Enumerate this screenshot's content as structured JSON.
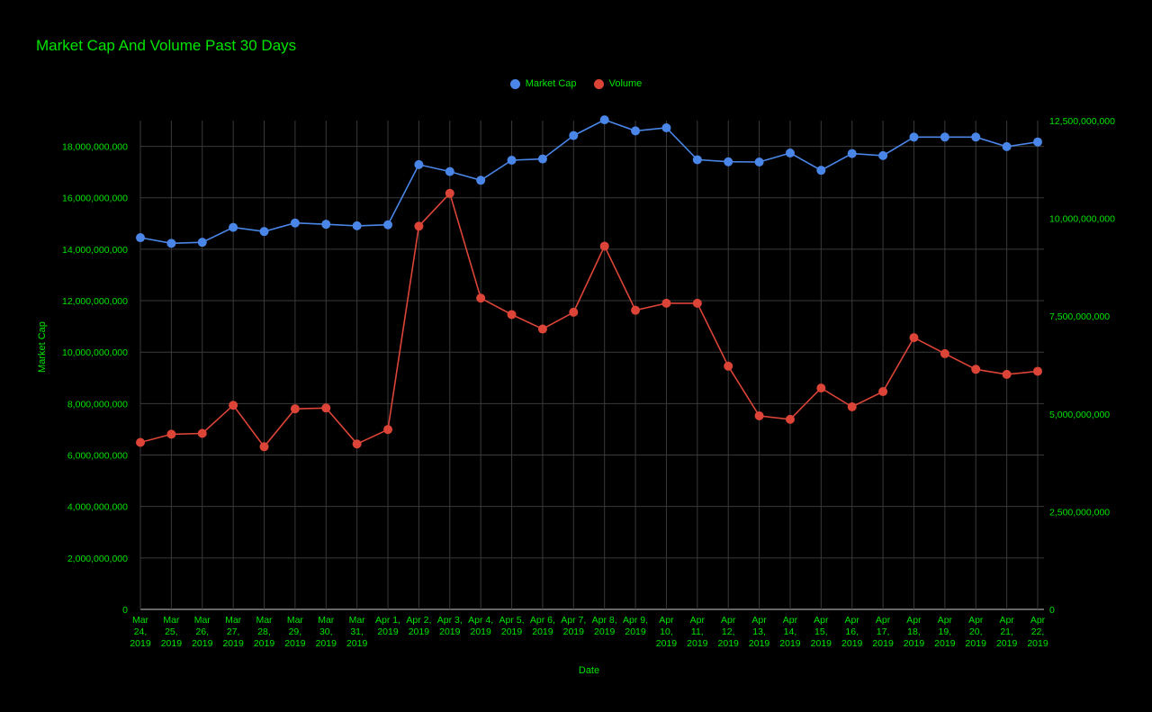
{
  "chart_data": {
    "type": "line",
    "title": "Market Cap And Volume Past 30 Days",
    "xlabel": "Date",
    "ylabel": "Market Cap",
    "ylabel_right": "",
    "categories": [
      [
        "Mar",
        "24,",
        "2019"
      ],
      [
        "Mar",
        "25,",
        "2019"
      ],
      [
        "Mar",
        "26,",
        "2019"
      ],
      [
        "Mar",
        "27,",
        "2019"
      ],
      [
        "Mar",
        "28,",
        "2019"
      ],
      [
        "Mar",
        "29,",
        "2019"
      ],
      [
        "Mar",
        "30,",
        "2019"
      ],
      [
        "Mar",
        "31,",
        "2019"
      ],
      [
        "Apr 1,",
        "2019"
      ],
      [
        "Apr 2,",
        "2019"
      ],
      [
        "Apr 3,",
        "2019"
      ],
      [
        "Apr 4,",
        "2019"
      ],
      [
        "Apr 5,",
        "2019"
      ],
      [
        "Apr 6,",
        "2019"
      ],
      [
        "Apr 7,",
        "2019"
      ],
      [
        "Apr 8,",
        "2019"
      ],
      [
        "Apr 9,",
        "2019"
      ],
      [
        "Apr",
        "10,",
        "2019"
      ],
      [
        "Apr",
        "11,",
        "2019"
      ],
      [
        "Apr",
        "12,",
        "2019"
      ],
      [
        "Apr",
        "13,",
        "2019"
      ],
      [
        "Apr",
        "14,",
        "2019"
      ],
      [
        "Apr",
        "15,",
        "2019"
      ],
      [
        "Apr",
        "16,",
        "2019"
      ],
      [
        "Apr",
        "17,",
        "2019"
      ],
      [
        "Apr",
        "18,",
        "2019"
      ],
      [
        "Apr",
        "19,",
        "2019"
      ],
      [
        "Apr",
        "20,",
        "2019"
      ],
      [
        "Apr",
        "21,",
        "2019"
      ],
      [
        "Apr",
        "22,",
        "2019"
      ]
    ],
    "ylim_left": [
      0,
      19000000000
    ],
    "yticks_left": [
      0,
      2000000000,
      4000000000,
      6000000000,
      8000000000,
      10000000000,
      12000000000,
      14000000000,
      16000000000,
      18000000000
    ],
    "yticklabels_left": [
      "0",
      "2,000,000,000",
      "4,000,000,000",
      "6,000,000,000",
      "8,000,000,000",
      "10,000,000,000",
      "12,000,000,000",
      "14,000,000,000",
      "16,000,000,000",
      "18,000,000,000"
    ],
    "ylim_right": [
      0,
      12500000000
    ],
    "yticks_right": [
      0,
      2500000000,
      5000000000,
      7500000000,
      10000000000,
      12500000000
    ],
    "yticklabels_right": [
      "0",
      "2,500,000,000",
      "5,000,000,000",
      "7,500,000,000",
      "10,000,000,000",
      "12,500,000,000"
    ],
    "grid": true,
    "legend_position": "top-center",
    "series": [
      {
        "name": "Market Cap",
        "axis": "left",
        "color": "#4a86e8",
        "values": [
          14450000000,
          14230000000,
          14270000000,
          14850000000,
          14690000000,
          15020000000,
          14970000000,
          14910000000,
          14950000000,
          17290000000,
          17020000000,
          16680000000,
          17460000000,
          17510000000,
          18420000000,
          19030000000,
          18600000000,
          18720000000,
          17480000000,
          17400000000,
          17390000000,
          17740000000,
          17070000000,
          17720000000,
          17640000000,
          18360000000,
          18360000000,
          18360000000,
          17990000000,
          18170000000
        ]
      },
      {
        "name": "Volume",
        "axis": "right",
        "color": "#db4437",
        "values": [
          4270000000,
          4480000000,
          4500000000,
          5220000000,
          4160000000,
          5130000000,
          5150000000,
          4230000000,
          4600000000,
          9800000000,
          10640000000,
          7960000000,
          7540000000,
          7170000000,
          7600000000,
          9290000000,
          7650000000,
          7830000000,
          7830000000,
          6220000000,
          4950000000,
          4860000000,
          5660000000,
          5180000000,
          5570000000,
          6950000000,
          6540000000,
          6140000000,
          6010000000,
          6090000000
        ]
      }
    ]
  }
}
